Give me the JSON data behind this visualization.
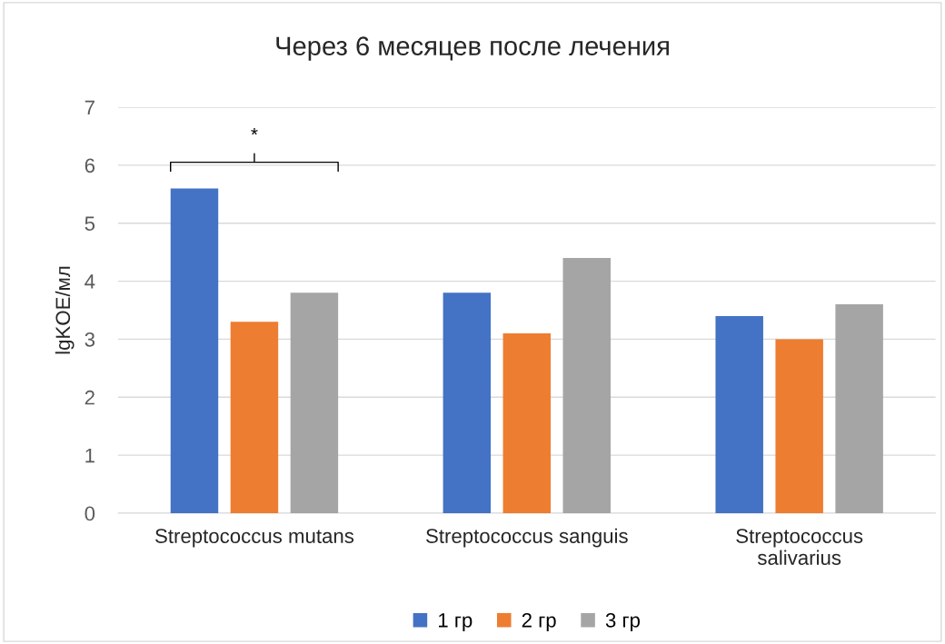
{
  "chart_data": {
    "type": "bar",
    "title": "Через 6 месяцев после лечения",
    "ylabel": "lgKOE/мл",
    "categories": [
      "Streptococcus mutans",
      "Streptococcus sanguis",
      "Streptococcus\nsalivarius"
    ],
    "series": [
      {
        "name": "1 гр",
        "color": "#4472c4",
        "values": [
          5.6,
          3.8,
          3.4
        ]
      },
      {
        "name": "2 гр",
        "color": "#ed7d31",
        "values": [
          3.3,
          3.1,
          3.0
        ]
      },
      {
        "name": "3 гр",
        "color": "#a5a5a5",
        "values": [
          3.8,
          4.4,
          3.6
        ]
      }
    ],
    "ylim": [
      0,
      7
    ],
    "yticks": [
      0,
      1,
      2,
      3,
      4,
      5,
      6,
      7
    ],
    "grid": "y",
    "legend": "bottom",
    "annotations": [
      "*"
    ]
  }
}
